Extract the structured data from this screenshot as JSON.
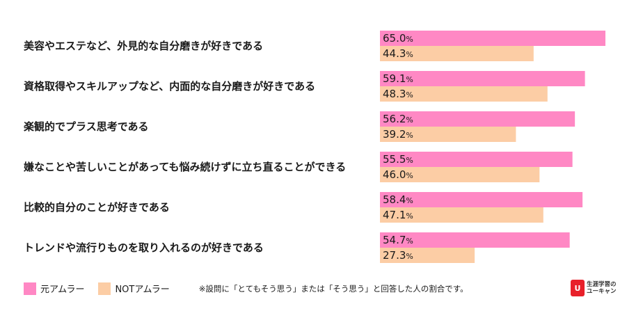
{
  "chart_data": {
    "type": "bar",
    "orientation": "horizontal",
    "categories": [
      "美容やエステなど、外見的な自分磨きが好きである",
      "資格取得やスキルアップなど、内面的な自分磨きが好きである",
      "楽観的でプラス思考である",
      "嫌なことや苦しいことがあっても悩み続けずに立ち直ることができる",
      "比較的自分のことが好きである",
      "トレンドや流行りものを取り入れるのが好きである"
    ],
    "series": [
      {
        "name": "元アムラー",
        "color": "#ff88c4",
        "values": [
          65.0,
          59.1,
          56.2,
          55.5,
          58.4,
          54.7
        ]
      },
      {
        "name": "NOTアムラー",
        "color": "#fccda5",
        "values": [
          44.3,
          48.3,
          39.2,
          46.0,
          47.1,
          27.3
        ]
      }
    ],
    "value_unit": "%",
    "xlim": [
      0,
      65
    ]
  },
  "legend": {
    "items": [
      {
        "label": "元アムラー",
        "color": "#ff88c4"
      },
      {
        "label": "NOTアムラー",
        "color": "#fccda5"
      }
    ]
  },
  "note": "※設問に「とてもそう思う」または「そう思う」と回答した人の割合です。",
  "logo": {
    "mark": "U",
    "line1": "生涯学習の",
    "line2": "ユーキャン",
    "color": "#e8202a"
  }
}
